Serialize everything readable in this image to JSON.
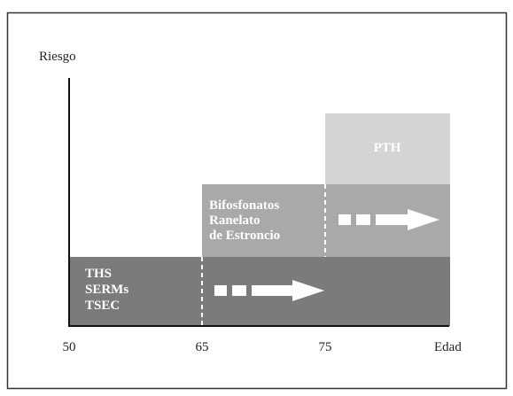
{
  "axes": {
    "y_label": "Riesgo",
    "x_label": "Edad",
    "x_ticks": [
      "50",
      "65",
      "75"
    ]
  },
  "blocks": [
    {
      "lines": [
        "THS",
        "SERMs",
        "TSEC"
      ]
    },
    {
      "lines": [
        "Bifosfonatos",
        "Ranelato",
        "de Estroncio"
      ]
    },
    {
      "lines": [
        "PTH"
      ]
    }
  ]
}
